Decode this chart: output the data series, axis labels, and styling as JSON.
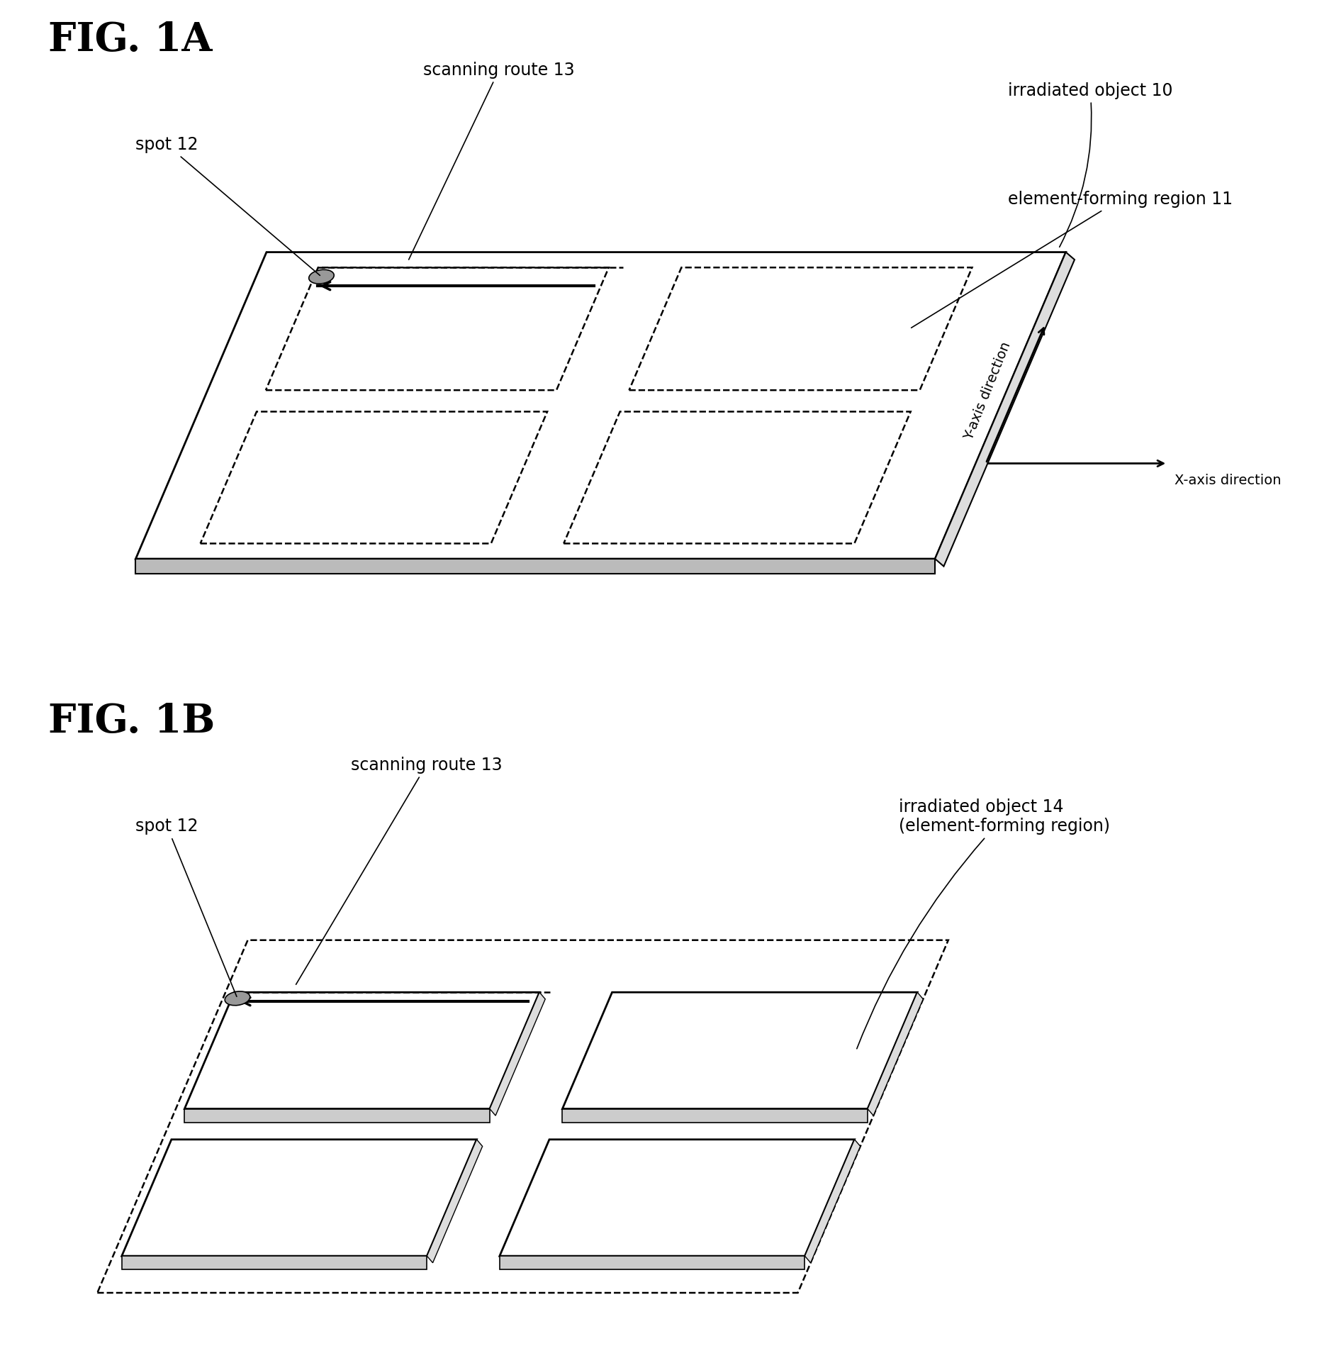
{
  "fig_title_A": "FIG. 1A",
  "fig_title_B": "FIG. 1B",
  "background_color": "#ffffff",
  "line_color": "#000000",
  "labels": {
    "scanning_route": "scanning route 13",
    "spot_A": "spot 12",
    "irradiated_object_A": "irradiated object 10",
    "element_forming_region": "element-forming region 11",
    "y_axis": "Y-axis direction",
    "x_axis": "X-axis direction",
    "scanning_route_B": "scanning route 13",
    "spot_B": "spot 12",
    "irradiated_object_B": "irradiated object 14\n(element-forming region)"
  },
  "font_title": 40,
  "font_label": 17
}
